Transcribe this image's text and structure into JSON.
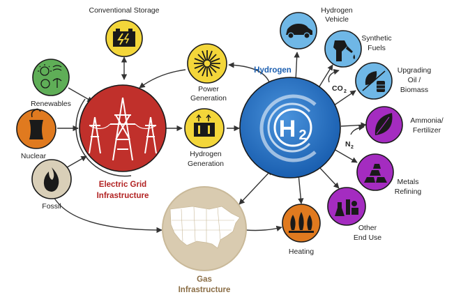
{
  "center": {
    "title": "Hydrogen",
    "symbol": "H",
    "subscript": "2",
    "color": "#1f6fc4"
  },
  "electric_grid": {
    "line1": "Electric Grid",
    "line2": "Infrastructure",
    "color": "#c0302b"
  },
  "gas": {
    "line1": "Gas",
    "line2": "Infrastructure",
    "color": "#d9cbb0"
  },
  "nodes": {
    "conventional_storage": {
      "label": "Conventional Storage",
      "color": "#f3d63a"
    },
    "renewables": {
      "label": "Renewables",
      "color": "#5fae57"
    },
    "nuclear": {
      "label": "Nuclear",
      "color": "#e07a1f"
    },
    "fossil": {
      "label": "Fossil",
      "color": "#d9cfb8"
    },
    "power_generation": {
      "line1": "Power",
      "line2": "Generation",
      "color": "#f3d63a"
    },
    "hydrogen_generation": {
      "line1": "Hydrogen",
      "line2": "Generation",
      "color": "#f3d63a"
    },
    "hydrogen_vehicle": {
      "line1": "Hydrogen",
      "line2": "Vehicle",
      "color": "#6fb7e6"
    },
    "synthetic_fuels": {
      "line1": "Synthetic",
      "line2": "Fuels",
      "color": "#6fb7e6"
    },
    "upgrading_oil": {
      "line1": "Upgrading",
      "line2": "Oil /",
      "line3": "Biomass",
      "color": "#6fb7e6"
    },
    "ammonia": {
      "line1": "Ammonia/",
      "line2": "Fertilizer",
      "color": "#a42cc0"
    },
    "metals": {
      "line1": "Metals",
      "line2": "Refining",
      "color": "#a42cc0"
    },
    "other_end_use": {
      "line1": "Other",
      "line2": "End Use",
      "color": "#a42cc0"
    },
    "heating": {
      "label": "Heating",
      "color": "#e07a1f"
    }
  },
  "inputs": {
    "co2": {
      "base": "CO",
      "sub": "2"
    },
    "n2": {
      "base": "N",
      "sub": "2"
    }
  }
}
